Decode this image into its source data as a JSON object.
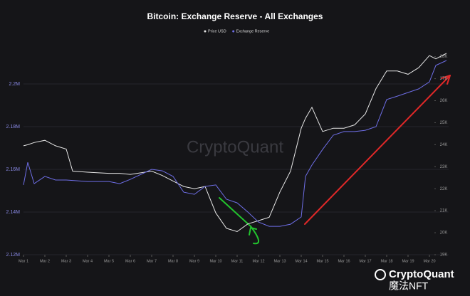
{
  "chart_data": {
    "type": "line",
    "title": "Bitcoin: Exchange Reserve - All Exchanges",
    "watermark": "CryptoQuant",
    "footer_logo": "CryptoQuant",
    "footer_handle": "魔法NFT",
    "x": [
      1,
      1.2,
      1.5,
      2,
      2.5,
      3,
      3.3,
      4,
      5,
      5.5,
      6,
      7,
      7.5,
      8,
      8.5,
      9,
      9.5,
      10,
      10.5,
      11,
      11.5,
      12,
      12.5,
      13,
      13.5,
      14,
      14.2,
      14.5,
      15,
      15.5,
      16,
      16.5,
      17,
      17.5,
      18,
      18.5,
      19,
      19.5,
      20,
      20.3,
      20.8
    ],
    "xlim": [
      1,
      20.9
    ],
    "xticks": [
      {
        "value": 1,
        "label": "Mar 1"
      },
      {
        "value": 2,
        "label": "Mar 2"
      },
      {
        "value": 3,
        "label": "Mar 3"
      },
      {
        "value": 4,
        "label": "Mar 4"
      },
      {
        "value": 5,
        "label": "Mar 5"
      },
      {
        "value": 6,
        "label": "Mar 6"
      },
      {
        "value": 7,
        "label": "Mar 7"
      },
      {
        "value": 8,
        "label": "Mar 8"
      },
      {
        "value": 9,
        "label": "Mar 9"
      },
      {
        "value": 10,
        "label": "Mar 10"
      },
      {
        "value": 11,
        "label": "Mar 11"
      },
      {
        "value": 12,
        "label": "Mar 12"
      },
      {
        "value": 13,
        "label": "Mar 13"
      },
      {
        "value": 14,
        "label": "Mar 14"
      },
      {
        "value": 15,
        "label": "Mar 15"
      },
      {
        "value": 16,
        "label": "Mar 16"
      },
      {
        "value": 17,
        "label": "Mar 17"
      },
      {
        "value": 18,
        "label": "Mar 18"
      },
      {
        "value": 19,
        "label": "Mar 19"
      },
      {
        "value": 20,
        "label": "Mar 20"
      }
    ],
    "ylim": [
      2120000,
      2220000
    ],
    "yticks": [
      {
        "value": 2120000,
        "label": "2.12M"
      },
      {
        "value": 2140000,
        "label": "2.14M"
      },
      {
        "value": 2160000,
        "label": "2.16M"
      },
      {
        "value": 2180000,
        "label": "2.18M"
      },
      {
        "value": 2200000,
        "label": "2.2M"
      }
    ],
    "y2lim": [
      19000,
      28700
    ],
    "y2ticks": [
      {
        "value": 19000,
        "label": "19K"
      },
      {
        "value": 20000,
        "label": "20K"
      },
      {
        "value": 21000,
        "label": "21K"
      },
      {
        "value": 22000,
        "label": "22K"
      },
      {
        "value": 23000,
        "label": "23K"
      },
      {
        "value": 24000,
        "label": "24K"
      },
      {
        "value": 25000,
        "label": "25K"
      },
      {
        "value": 26000,
        "label": "26K"
      },
      {
        "value": 27000,
        "label": "27K"
      },
      {
        "value": 28000,
        "label": "28K"
      }
    ],
    "grid": true,
    "legend": "top",
    "series": [
      {
        "name": "Price USD",
        "color": "#e6e6e6",
        "axis": "y2",
        "values": [
          23950,
          24000,
          24100,
          24200,
          23950,
          23800,
          22800,
          22750,
          22700,
          22700,
          22650,
          22800,
          22600,
          22350,
          22100,
          22000,
          22100,
          20900,
          20200,
          20050,
          20400,
          20550,
          20700,
          21850,
          22800,
          24750,
          25200,
          25700,
          24600,
          24750,
          24750,
          24900,
          25400,
          26550,
          27350,
          27350,
          27200,
          27500,
          28050,
          27900,
          28150
        ]
      },
      {
        "name": "Exchange Reserve",
        "color": "#6e6ee6",
        "values": [
          2152700,
          2163300,
          2153300,
          2156700,
          2155000,
          2155000,
          2154800,
          2154300,
          2154300,
          2153300,
          2155300,
          2160000,
          2159300,
          2156700,
          2149300,
          2148300,
          2152000,
          2152700,
          2146000,
          2144300,
          2140000,
          2135300,
          2133300,
          2133300,
          2134300,
          2137700,
          2156700,
          2162000,
          2169300,
          2176000,
          2177700,
          2177700,
          2178300,
          2180000,
          2192700,
          2194300,
          2196000,
          2197700,
          2201000,
          2208700,
          2211000
        ]
      }
    ]
  }
}
